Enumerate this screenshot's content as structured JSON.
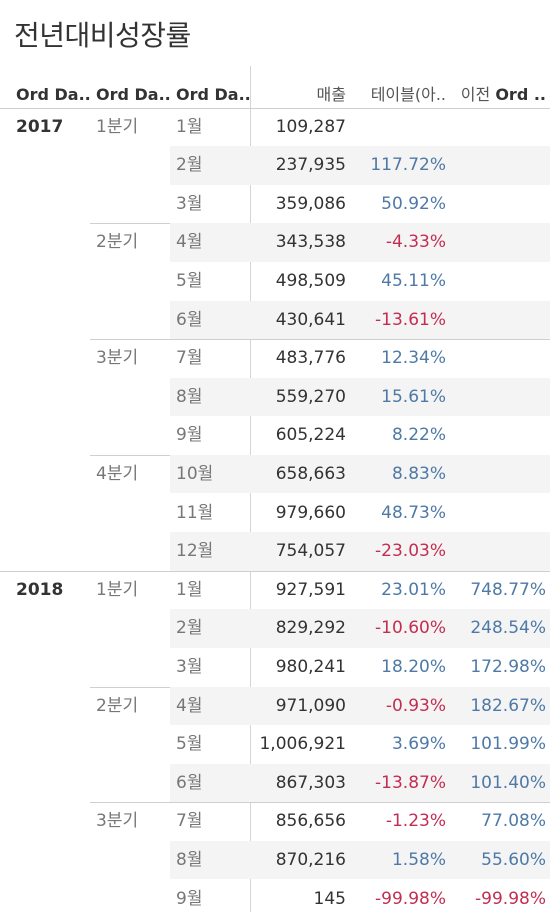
{
  "title": "전년대비성장률",
  "headers": {
    "col1": "Ord Da..",
    "col2": "Ord Da..",
    "col3": "Ord Da..",
    "sales": "매출",
    "pct1": "테이블(아..",
    "pct2_prefix": "이전 ",
    "pct2_bold": "Ord .."
  },
  "groups": [
    {
      "year": "2017",
      "quarters": [
        {
          "label": "1분기",
          "rows": [
            {
              "m": "1월",
              "s": "109,287",
              "p1": "",
              "p2": ""
            },
            {
              "m": "2월",
              "s": "237,935",
              "p1": "117.72%",
              "p2": ""
            },
            {
              "m": "3월",
              "s": "359,086",
              "p1": "50.92%",
              "p2": ""
            }
          ]
        },
        {
          "label": "2분기",
          "rows": [
            {
              "m": "4월",
              "s": "343,538",
              "p1": "-4.33%",
              "p2": ""
            },
            {
              "m": "5월",
              "s": "498,509",
              "p1": "45.11%",
              "p2": ""
            },
            {
              "m": "6월",
              "s": "430,641",
              "p1": "-13.61%",
              "p2": ""
            }
          ]
        },
        {
          "label": "3분기",
          "rows": [
            {
              "m": "7월",
              "s": "483,776",
              "p1": "12.34%",
              "p2": ""
            },
            {
              "m": "8월",
              "s": "559,270",
              "p1": "15.61%",
              "p2": ""
            },
            {
              "m": "9월",
              "s": "605,224",
              "p1": "8.22%",
              "p2": ""
            }
          ]
        },
        {
          "label": "4분기",
          "rows": [
            {
              "m": "10월",
              "s": "658,663",
              "p1": "8.83%",
              "p2": ""
            },
            {
              "m": "11월",
              "s": "979,660",
              "p1": "48.73%",
              "p2": ""
            },
            {
              "m": "12월",
              "s": "754,057",
              "p1": "-23.03%",
              "p2": ""
            }
          ]
        }
      ]
    },
    {
      "year": "2018",
      "quarters": [
        {
          "label": "1분기",
          "rows": [
            {
              "m": "1월",
              "s": "927,591",
              "p1": "23.01%",
              "p2": "748.77%"
            },
            {
              "m": "2월",
              "s": "829,292",
              "p1": "-10.60%",
              "p2": "248.54%"
            },
            {
              "m": "3월",
              "s": "980,241",
              "p1": "18.20%",
              "p2": "172.98%"
            }
          ]
        },
        {
          "label": "2분기",
          "rows": [
            {
              "m": "4월",
              "s": "971,090",
              "p1": "-0.93%",
              "p2": "182.67%"
            },
            {
              "m": "5월",
              "s": "1,006,921",
              "p1": "3.69%",
              "p2": "101.99%"
            },
            {
              "m": "6월",
              "s": "867,303",
              "p1": "-13.87%",
              "p2": "101.40%"
            }
          ]
        },
        {
          "label": "3분기",
          "rows": [
            {
              "m": "7월",
              "s": "856,656",
              "p1": "-1.23%",
              "p2": "77.08%"
            },
            {
              "m": "8월",
              "s": "870,216",
              "p1": "1.58%",
              "p2": "55.60%"
            },
            {
              "m": "9월",
              "s": "145",
              "p1": "-99.98%",
              "p2": "-99.98%"
            }
          ]
        }
      ]
    }
  ],
  "colors": {
    "positive": "#4e79a7",
    "negative": "#c22e52"
  }
}
